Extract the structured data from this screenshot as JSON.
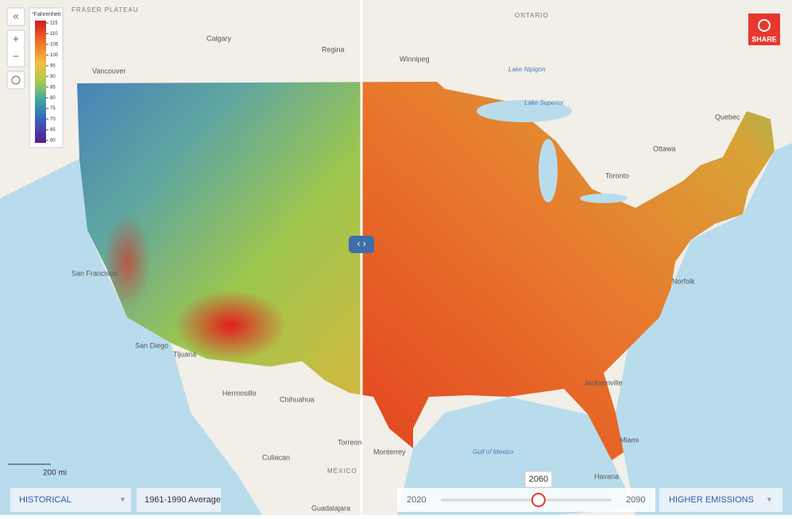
{
  "legend": {
    "title": "°Fahrenheit",
    "ticks": [
      115,
      110,
      105,
      100,
      95,
      90,
      85,
      80,
      75,
      70,
      65,
      60
    ]
  },
  "controls": {
    "left_dropdown": "HISTORICAL",
    "period": "1961-1990 Average",
    "right_dropdown": "HIGHER EMISSIONS",
    "share": "SHARE",
    "scale": "200 mi"
  },
  "slider": {
    "min": 2020,
    "max": 2090,
    "value": 2060
  },
  "map_labels": [
    "FRASER PLATEAU",
    "Calgary",
    "Regina",
    "Winnipeg",
    "ONTARIO",
    "Lake Nipigon",
    "Lake Superior",
    "Quebec",
    "Ottawa",
    "Toronto",
    "Vancouver",
    "San Francisco",
    "San Diego",
    "Tijuana",
    "Hermosillo",
    "Chihuahua",
    "Culiacan",
    "Torreon",
    "Monterrey",
    "MÉXICO",
    "Guadalajara",
    "Jacksonville",
    "Miami",
    "Gulf of Mexico",
    "Havana",
    "Norfolk"
  ]
}
